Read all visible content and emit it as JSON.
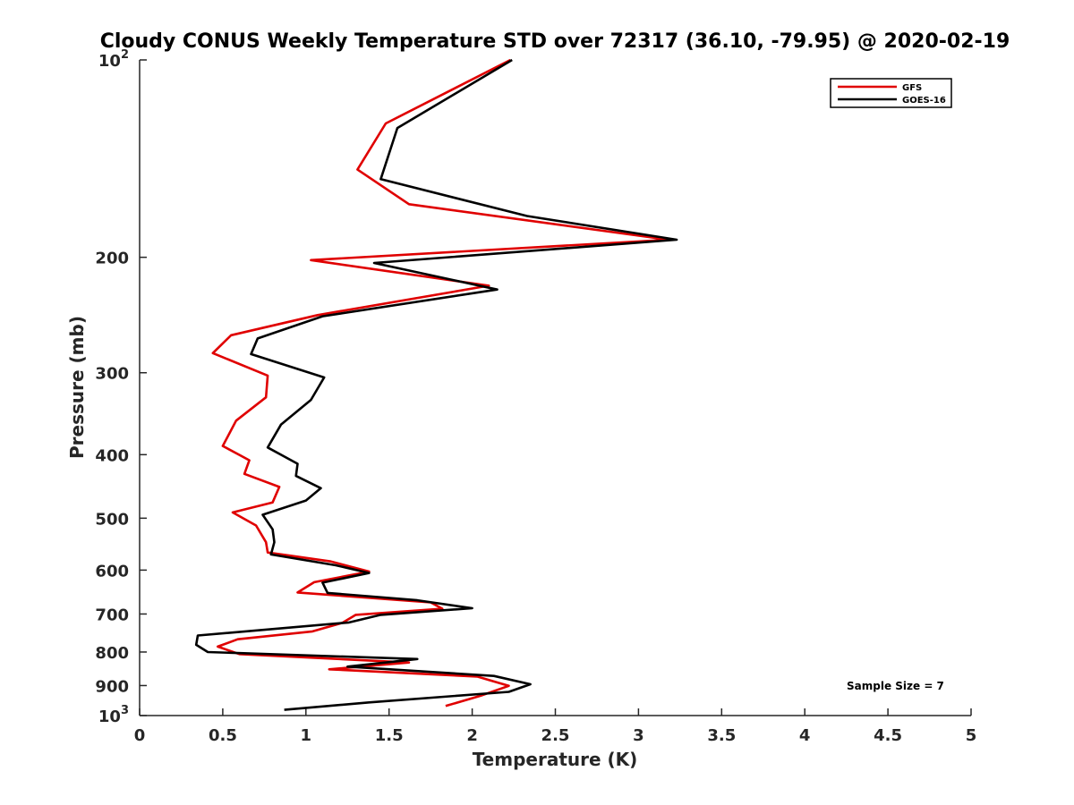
{
  "chart_data": {
    "type": "line",
    "title": "Cloudy CONUS Weekly Temperature STD over 72317 (36.10, -79.95) @ 2020-02-19",
    "xlabel": "Temperature (K)",
    "ylabel": "Pressure (mb)",
    "xlim": [
      0,
      5
    ],
    "ylim": [
      1000,
      100
    ],
    "yscale": "log",
    "y_reversed": true,
    "xticks": [
      "0",
      "0.5",
      "1",
      "1.5",
      "2",
      "2.5",
      "3",
      "3.5",
      "4",
      "4.5",
      "5"
    ],
    "yticks": [
      {
        "value": 100,
        "base": "10",
        "exp": "2"
      },
      {
        "value": 200,
        "label": "200"
      },
      {
        "value": 300,
        "label": "300"
      },
      {
        "value": 400,
        "label": "400"
      },
      {
        "value": 500,
        "label": "500"
      },
      {
        "value": 600,
        "label": "600"
      },
      {
        "value": 700,
        "label": "700"
      },
      {
        "value": 800,
        "label": "800"
      },
      {
        "value": 900,
        "label": "900"
      },
      {
        "value": 1000,
        "base": "10",
        "exp": "3"
      }
    ],
    "grid": false,
    "legend_position": "top-right",
    "annotation": "Sample Size = 7",
    "series": [
      {
        "name": "GFS",
        "color": "#e00000",
        "points": [
          [
            2.23,
            100
          ],
          [
            1.48,
            125
          ],
          [
            1.31,
            147
          ],
          [
            1.62,
            166
          ],
          [
            3.18,
            188
          ],
          [
            1.03,
            202
          ],
          [
            2.1,
            221
          ],
          [
            1.07,
            245
          ],
          [
            0.55,
            263
          ],
          [
            0.44,
            280
          ],
          [
            0.77,
            303
          ],
          [
            0.76,
            327
          ],
          [
            0.58,
            355
          ],
          [
            0.5,
            388
          ],
          [
            0.66,
            408
          ],
          [
            0.63,
            428
          ],
          [
            0.84,
            448
          ],
          [
            0.8,
            473
          ],
          [
            0.56,
            490
          ],
          [
            0.7,
            513
          ],
          [
            0.76,
            544
          ],
          [
            0.77,
            564
          ],
          [
            1.15,
            582
          ],
          [
            1.38,
            603
          ],
          [
            1.05,
            626
          ],
          [
            0.95,
            649
          ],
          [
            1.75,
            672
          ],
          [
            1.82,
            687
          ],
          [
            1.3,
            702
          ],
          [
            1.22,
            722
          ],
          [
            1.04,
            744
          ],
          [
            0.59,
            765
          ],
          [
            0.47,
            785
          ],
          [
            0.6,
            806
          ],
          [
            1.62,
            830
          ],
          [
            1.14,
            850
          ],
          [
            2.03,
            872
          ],
          [
            2.22,
            901
          ],
          [
            2.05,
            933
          ],
          [
            1.84,
            967
          ]
        ]
      },
      {
        "name": "GOES-16",
        "color": "#000000",
        "points": [
          [
            2.24,
            100
          ],
          [
            1.55,
            127
          ],
          [
            1.45,
            152
          ],
          [
            2.33,
            173
          ],
          [
            3.23,
            188
          ],
          [
            1.41,
            204
          ],
          [
            2.15,
            224
          ],
          [
            1.1,
            246
          ],
          [
            0.71,
            266
          ],
          [
            0.67,
            281
          ],
          [
            1.11,
            305
          ],
          [
            1.03,
            330
          ],
          [
            0.85,
            360
          ],
          [
            0.77,
            390
          ],
          [
            0.95,
            413
          ],
          [
            0.94,
            431
          ],
          [
            1.09,
            450
          ],
          [
            1.0,
            470
          ],
          [
            0.74,
            494
          ],
          [
            0.8,
            520
          ],
          [
            0.81,
            544
          ],
          [
            0.79,
            568
          ],
          [
            1.18,
            590
          ],
          [
            1.38,
            606
          ],
          [
            1.1,
            627
          ],
          [
            1.13,
            650
          ],
          [
            1.67,
            667
          ],
          [
            2.0,
            686
          ],
          [
            1.45,
            702
          ],
          [
            1.26,
            721
          ],
          [
            0.35,
            755
          ],
          [
            0.34,
            780
          ],
          [
            0.41,
            800
          ],
          [
            1.67,
            820
          ],
          [
            1.25,
            842
          ],
          [
            2.13,
            870
          ],
          [
            2.35,
            896
          ],
          [
            2.22,
            920
          ],
          [
            1.38,
            955
          ],
          [
            0.87,
            980
          ]
        ]
      }
    ]
  }
}
